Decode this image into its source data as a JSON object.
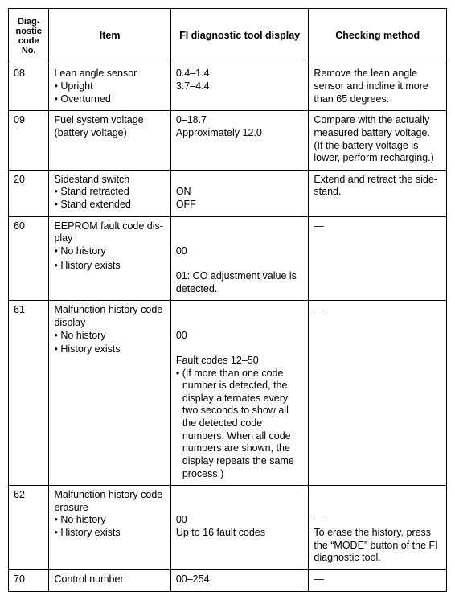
{
  "table": {
    "headers": {
      "code": "Diag­nostic code No.",
      "item": "Item",
      "display": "FI diagnostic tool display",
      "check": "Checking method"
    },
    "rows": [
      {
        "code": "08",
        "item_title": "Lean angle sensor",
        "item_b1": "Upright",
        "item_b2": "Overturned",
        "disp_l1": "",
        "disp_l2": "0.4–1.4",
        "disp_l3": "3.7–4.4",
        "check": "Remove the lean angle sensor and incline it more than 65 degrees."
      },
      {
        "code": "09",
        "item_title": "Fuel system voltage (battery voltage)",
        "disp_l1": "0–18.7",
        "disp_l2": "Approximately 12.0",
        "check": "Compare with the actually measured battery voltage. (If the battery voltage is lower, perform recharging.)"
      },
      {
        "code": "20",
        "item_title": "Sidestand switch",
        "item_b1": "Stand retracted",
        "item_b2": "Stand extended",
        "disp_l1": "",
        "disp_l2": "ON",
        "disp_l3": "OFF",
        "check": "Extend and retract the side­stand."
      },
      {
        "code": "60",
        "item_title": "EEPROM fault code dis­play",
        "item_b1": "No history",
        "item_b2": "History exists",
        "disp_l1": "",
        "disp_l2": "",
        "disp_l3": "00",
        "disp_l4": "",
        "disp_l5": "01: CO adjustment value is detected.",
        "check": "—"
      },
      {
        "code": "61",
        "item_title": "Malfunction history code display",
        "item_b1": "No history",
        "item_b2": "History exists",
        "disp_l1": "",
        "disp_l2": "",
        "disp_l3": "00",
        "disp_l4": "",
        "disp_l5": "Fault codes 12–50",
        "disp_note": "(If more than one code number is detected, the dis­play alternates every two seconds to show all the de­tected code numbers. When all code numbers are shown, the display repeats the same process.)",
        "check": "—"
      },
      {
        "code": "62",
        "item_title": "Malfunction history code erasure",
        "item_b1": "No history",
        "item_b2": "History exists",
        "disp_l1": "",
        "disp_l2": "",
        "disp_l3": "00",
        "disp_l4": "Up to 16 fault codes",
        "check_l1": "",
        "check_l2": "",
        "check_l3": "—",
        "check_l4": "To erase the history, press the “MODE” button of the FI diagnostic tool."
      },
      {
        "code": "70",
        "item_title": "Control number",
        "disp_l1": "00–254",
        "check": "—"
      }
    ]
  }
}
